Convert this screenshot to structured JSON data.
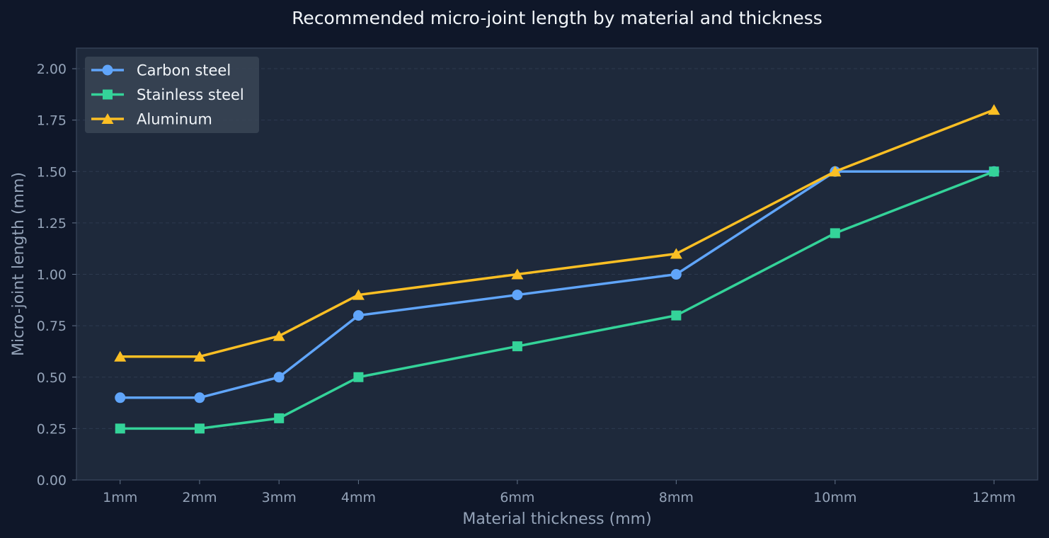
{
  "chart_data": {
    "type": "line",
    "title": "Recommended micro-joint length by material and thickness",
    "xlabel": "Material thickness (mm)",
    "ylabel": "Micro-joint length (mm)",
    "x": [
      1,
      2,
      3,
      4,
      6,
      8,
      10,
      12
    ],
    "xticklabels": [
      "1mm",
      "2mm",
      "3mm",
      "4mm",
      "6mm",
      "8mm",
      "10mm",
      "12mm"
    ],
    "xlim": [
      0.45,
      12.55
    ],
    "ylim": [
      0,
      2.1
    ],
    "yticks": [
      0,
      0.25,
      0.5,
      0.75,
      1.0,
      1.25,
      1.5,
      1.75,
      2.0
    ],
    "yticklabels": [
      "0.00",
      "0.25",
      "0.50",
      "0.75",
      "1.00",
      "1.25",
      "1.50",
      "1.75",
      "2.00"
    ],
    "grid": "horizontal dashed",
    "legend_position": "top-left",
    "colors": {
      "figure_bg": "#0f1729",
      "plot_bg": "#1e293b",
      "axis": "#334155",
      "grid": "#2d3a4f",
      "legend_bg": "#3a4556"
    },
    "series": [
      {
        "name": "Carbon steel",
        "marker": "circle",
        "color": "#60a5fa",
        "values": [
          0.4,
          0.4,
          0.5,
          0.8,
          0.9,
          1.0,
          1.5,
          1.5
        ]
      },
      {
        "name": "Stainless steel",
        "marker": "square",
        "color": "#34d399",
        "values": [
          0.25,
          0.25,
          0.3,
          0.5,
          0.65,
          0.8,
          1.2,
          1.5
        ]
      },
      {
        "name": "Aluminum",
        "marker": "triangle",
        "color": "#fbbf24",
        "values": [
          0.6,
          0.6,
          0.7,
          0.9,
          1.0,
          1.1,
          1.5,
          1.8
        ]
      }
    ]
  }
}
